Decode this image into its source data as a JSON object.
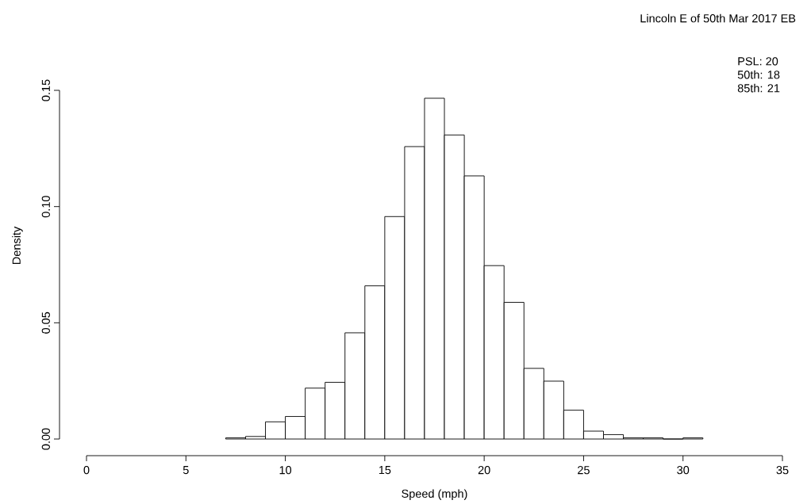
{
  "chart_data": {
    "type": "histogram",
    "title": "Lincoln E of 50th Mar 2017 EB",
    "xlabel": "Speed (mph)",
    "ylabel": "Density",
    "annotations": [
      "PSL: 20",
      "50th: 18",
      "85th: 21"
    ],
    "bins": [
      7,
      8,
      9,
      10,
      11,
      12,
      13,
      14,
      15,
      16,
      17,
      18,
      19,
      20,
      21,
      22,
      23,
      24,
      25,
      26,
      27,
      28,
      29,
      30,
      31
    ],
    "values": [
      0.0005,
      0.0011,
      0.0074,
      0.0097,
      0.0219,
      0.0244,
      0.0457,
      0.0659,
      0.0957,
      0.1258,
      0.1466,
      0.1308,
      0.1132,
      0.0746,
      0.0588,
      0.0304,
      0.0249,
      0.0124,
      0.0034,
      0.0019,
      0.0005,
      0.0005,
      0,
      0.0005
    ],
    "color": "#ffffff",
    "xlim": [
      0,
      35
    ],
    "ylim": [
      0,
      0.15
    ],
    "xticks": [
      0,
      5,
      10,
      15,
      20,
      25,
      30,
      35
    ],
    "yticks": [
      {
        "value": 0,
        "label": "0.00"
      },
      {
        "value": 0.05,
        "label": "0.05"
      },
      {
        "value": 0.1,
        "label": "0.10"
      },
      {
        "value": 0.15,
        "label": "0.15"
      }
    ]
  }
}
